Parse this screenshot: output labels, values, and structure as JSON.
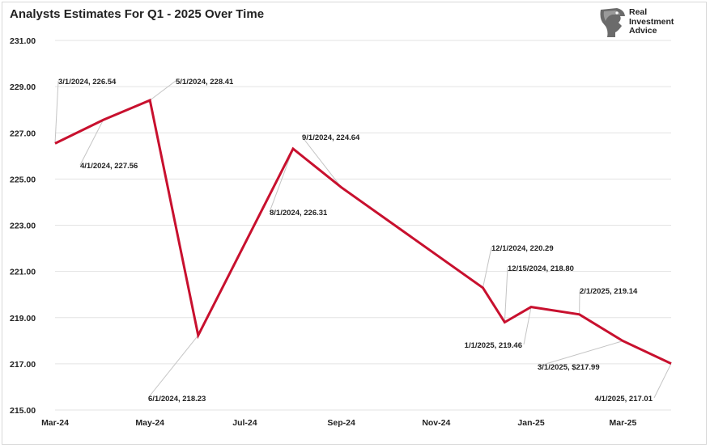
{
  "page": {
    "title": "Analysts Estimates For Q1 - 2025 Over Time",
    "logo": {
      "icon": "eagle-head-icon",
      "lines": [
        "Real",
        "Investment",
        "Advice"
      ]
    }
  },
  "chart_data": {
    "type": "line",
    "title": "Analysts Estimates For Q1 - 2025 Over Time",
    "xlabel": "",
    "ylabel": "",
    "x_tick_labels": [
      "Mar-24",
      "May-24",
      "Jul-24",
      "Sep-24",
      "Nov-24",
      "Jan-25",
      "Mar-25"
    ],
    "x_tick_dates": [
      "2024-03-01",
      "2024-05-01",
      "2024-07-01",
      "2024-09-01",
      "2024-11-01",
      "2025-01-01",
      "2025-03-01"
    ],
    "y_ticks": [
      "215.00",
      "217.00",
      "219.00",
      "221.00",
      "223.00",
      "225.00",
      "227.00",
      "229.00",
      "231.00"
    ],
    "ylim": [
      215,
      231
    ],
    "grid": "horizontal",
    "line_color": "#c8102e",
    "series": [
      {
        "values": [
          {
            "x": "2024-03-01",
            "y": 226.54,
            "label": "3/1/2024, 226.54"
          },
          {
            "x": "2024-04-01",
            "y": 227.56,
            "label": "4/1/2024, 227.56"
          },
          {
            "x": "2024-05-01",
            "y": 228.41,
            "label": "5/1/2024, 228.41"
          },
          {
            "x": "2024-06-01",
            "y": 218.23,
            "label": "6/1/2024, 218.23"
          },
          {
            "x": "2024-08-01",
            "y": 226.31,
            "label": "8/1/2024, 226.31"
          },
          {
            "x": "2024-09-01",
            "y": 224.64,
            "label": "9/1/2024, 224.64"
          },
          {
            "x": "2024-12-01",
            "y": 220.29,
            "label": "12/1/2024, 220.29"
          },
          {
            "x": "2024-12-15",
            "y": 218.8,
            "label": "12/15/2024, 218.80"
          },
          {
            "x": "2025-01-01",
            "y": 219.46,
            "label": "1/1/2025, 219.46"
          },
          {
            "x": "2025-02-01",
            "y": 219.14,
            "label": "2/1/2025, 219.14"
          },
          {
            "x": "2025-03-01",
            "y": 217.99,
            "label": "3/1/2025, $217.99"
          },
          {
            "x": "2025-04-01",
            "y": 217.01,
            "label": "4/1/2025, 217.01"
          }
        ]
      }
    ]
  }
}
